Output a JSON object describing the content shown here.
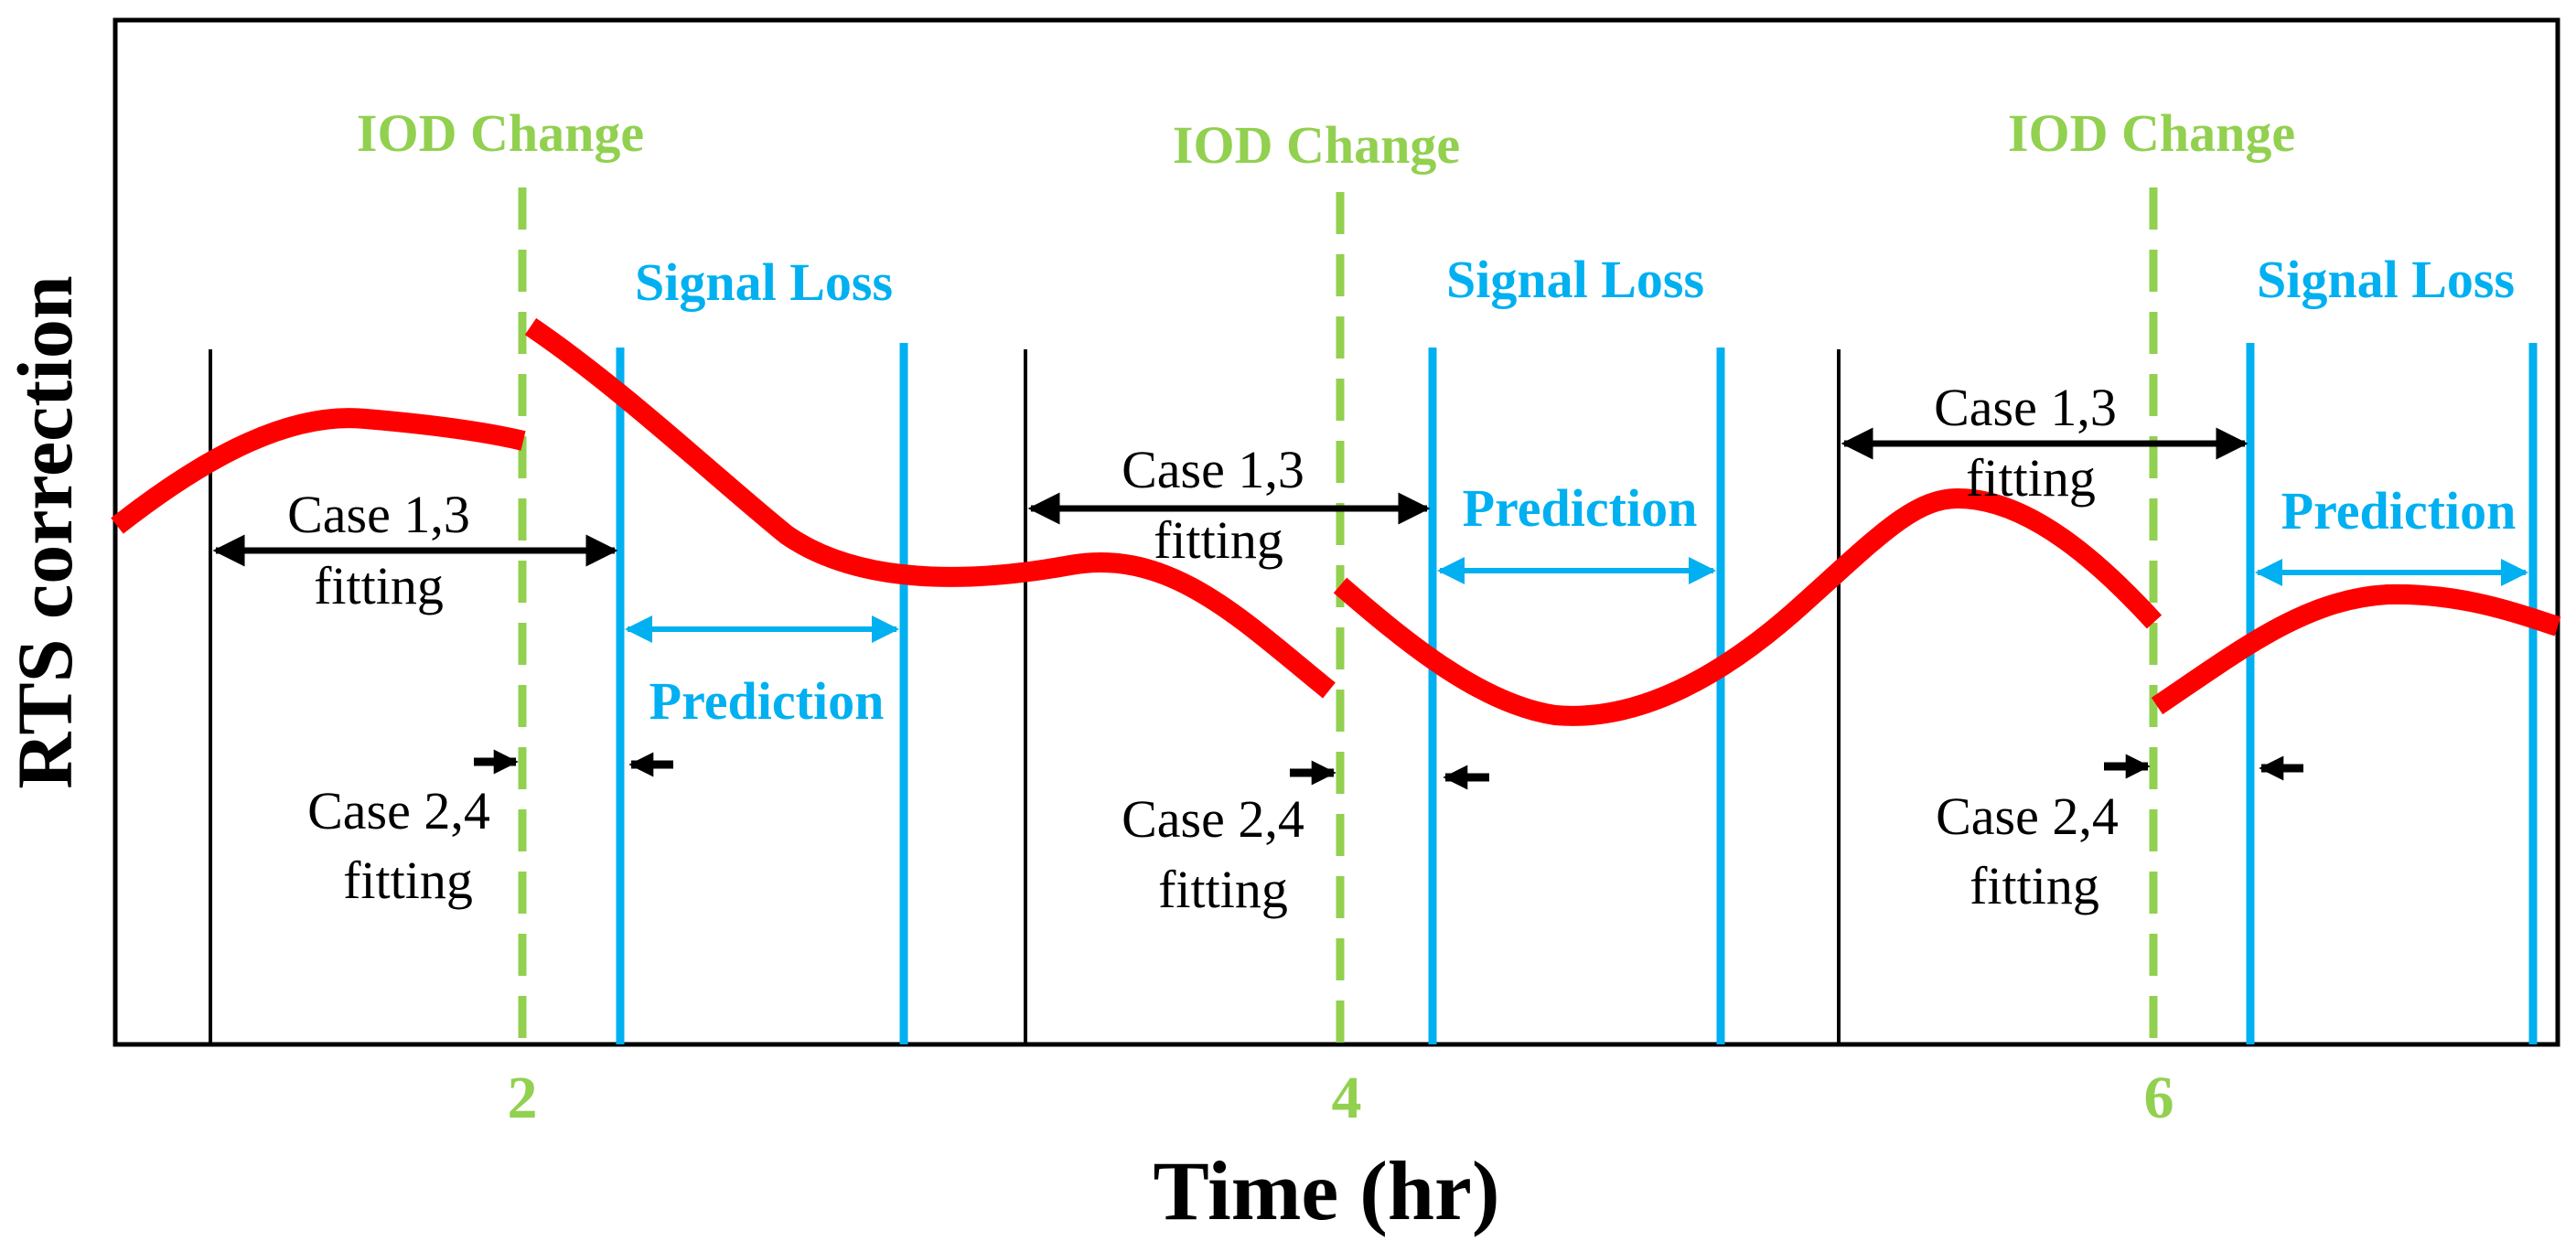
{
  "figure": {
    "y_axis_label": "RTS correction",
    "x_axis_label": "Time (hr)",
    "x_ticks": [
      "2",
      "4",
      "6"
    ]
  },
  "colors": {
    "curve": "#ff0000",
    "iod": "#92d050",
    "signal": "#00b0f0",
    "black": "#000000"
  },
  "segments": [
    {
      "iod_label": "IOD Change",
      "signal_loss_label": "Signal Loss",
      "case13_line1": "Case 1,3",
      "case13_line2": "fitting",
      "prediction_label": "Prediction",
      "case24_line1": "Case 2,4",
      "case24_line2": "fitting"
    },
    {
      "iod_label": "IOD Change",
      "signal_loss_label": "Signal Loss",
      "case13_line1": "Case 1,3",
      "case13_line2": "fitting",
      "prediction_label": "Prediction",
      "case24_line1": "Case 2,4",
      "case24_line2": "fitting"
    },
    {
      "iod_label": "IOD Change",
      "signal_loss_label": "Signal Loss",
      "case13_line1": "Case 1,3",
      "case13_line2": "fitting",
      "prediction_label": "Prediction",
      "case24_line1": "Case 2,4",
      "case24_line2": "fitting"
    }
  ]
}
